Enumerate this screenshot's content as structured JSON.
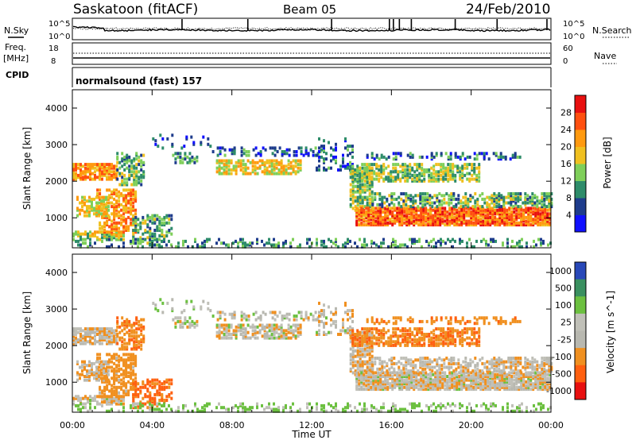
{
  "header": {
    "title": "Saskatoon (fitACF)",
    "beam": "Beam 05",
    "date": "24/Feb/2010"
  },
  "status_panels": {
    "nsky_label": "N.Sky",
    "nsearch_label": "N.Search",
    "nsky_ticks": [
      "10^5",
      "10^0"
    ],
    "nsky_right_ticks": [
      "10^5",
      "10^0"
    ],
    "freq_label_top": "Freq.",
    "freq_label_bottom": "[MHz]",
    "freq_ticks": [
      "18",
      "8"
    ],
    "nave_label": "Nave",
    "nave_ticks": [
      "60",
      "0"
    ],
    "cpid_label": "CPID",
    "cpid_value": "normalsound (fast) 157"
  },
  "chart_data": [
    {
      "type": "heatmap",
      "parameter": "power",
      "ylabel": "Slant Range [km]",
      "ylim": [
        180,
        4500
      ],
      "yticks": [
        1000,
        2000,
        3000,
        4000
      ],
      "colorbar_label": "Power [dB]",
      "colorbar_ticks": [
        4,
        8,
        12,
        16,
        20,
        24,
        28
      ],
      "colorbar_range": [
        0,
        32
      ],
      "colorbar_colors": [
        "#1010ff",
        "#1e3c8c",
        "#2e8c6a",
        "#7fcf5a",
        "#f0c020",
        "#ff9a10",
        "#ff5010",
        "#e81010"
      ]
    },
    {
      "type": "heatmap",
      "parameter": "velocity",
      "ylabel": "Slant Range [km]",
      "ylim": [
        180,
        4500
      ],
      "yticks": [
        1000,
        2000,
        3000,
        4000
      ],
      "colorbar_label": "Velocity [m s^-1]",
      "colorbar_ticks": [
        "1000",
        "500",
        "100",
        "25",
        "-25",
        "-100",
        "-500",
        "-1000"
      ],
      "colorbar_colors": [
        "#2848b8",
        "#3a9060",
        "#6cc040",
        "#c0c0b8",
        "#b8b8b0",
        "#f09020",
        "#ff6010",
        "#e81010"
      ]
    }
  ],
  "x_axis": {
    "label": "Time UT",
    "ticks": [
      "00:00",
      "04:00",
      "08:00",
      "12:00",
      "16:00",
      "20:00",
      "00:00"
    ],
    "range_hours": [
      0,
      24
    ]
  }
}
